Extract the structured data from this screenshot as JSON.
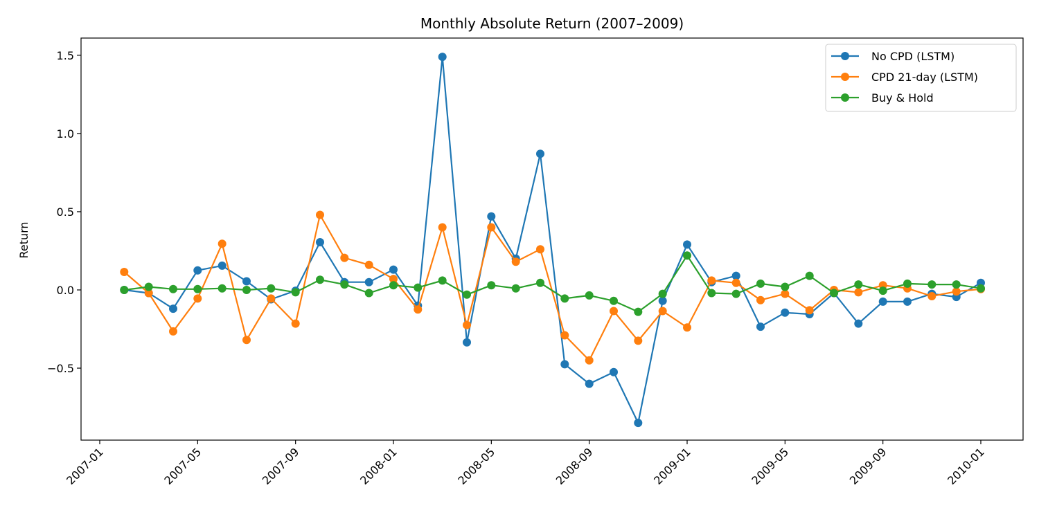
{
  "chart_data": {
    "type": "line",
    "title": "Monthly Absolute Return (2007–2009)",
    "xlabel": "",
    "ylabel": "Return",
    "x": [
      "2007-02",
      "2007-03",
      "2007-04",
      "2007-05",
      "2007-06",
      "2007-07",
      "2007-08",
      "2007-09",
      "2007-10",
      "2007-11",
      "2007-12",
      "2008-01",
      "2008-02",
      "2008-03",
      "2008-04",
      "2008-05",
      "2008-06",
      "2008-07",
      "2008-08",
      "2008-09",
      "2008-10",
      "2008-11",
      "2008-12",
      "2009-01",
      "2009-02",
      "2009-03",
      "2009-04",
      "2009-05",
      "2009-06",
      "2009-07",
      "2009-08",
      "2009-09",
      "2009-10",
      "2009-11",
      "2009-12",
      "2010-01"
    ],
    "x_ticks": [
      "2007-01",
      "2007-05",
      "2007-09",
      "2008-01",
      "2008-05",
      "2008-09",
      "2009-01",
      "2009-05",
      "2009-09",
      "2010-01"
    ],
    "y_ticks": [
      -0.5,
      0.0,
      0.5,
      1.0,
      1.5
    ],
    "y_tick_labels": [
      "−0.5",
      "0.0",
      "0.5",
      "1.0",
      "1.5"
    ],
    "ylim": [
      -0.96,
      1.61
    ],
    "grid": false,
    "legend_position": "top-right",
    "series": [
      {
        "name": "No CPD (LSTM)",
        "color": "#1f77b4",
        "values": [
          0.0,
          -0.02,
          -0.12,
          0.125,
          0.155,
          0.055,
          -0.06,
          -0.005,
          0.305,
          0.05,
          0.05,
          0.13,
          -0.1,
          1.49,
          -0.335,
          0.47,
          0.2,
          0.87,
          -0.475,
          -0.6,
          -0.525,
          -0.85,
          -0.07,
          0.29,
          0.05,
          0.09,
          -0.235,
          -0.145,
          -0.155,
          -0.02,
          -0.215,
          -0.075,
          -0.075,
          -0.025,
          -0.045,
          0.045
        ]
      },
      {
        "name": "CPD 21-day (LSTM)",
        "color": "#ff7f0e",
        "values": [
          0.115,
          -0.02,
          -0.265,
          -0.055,
          0.295,
          -0.32,
          -0.055,
          -0.215,
          0.48,
          0.205,
          0.16,
          0.07,
          -0.125,
          0.4,
          -0.225,
          0.4,
          0.18,
          0.26,
          -0.29,
          -0.45,
          -0.135,
          -0.325,
          -0.135,
          -0.24,
          0.06,
          0.045,
          -0.065,
          -0.025,
          -0.13,
          0.0,
          -0.015,
          0.03,
          0.01,
          -0.04,
          -0.01,
          0.005
        ]
      },
      {
        "name": "Buy & Hold",
        "color": "#2ca02c",
        "values": [
          0.0,
          0.02,
          0.005,
          0.005,
          0.01,
          0.0,
          0.01,
          -0.015,
          0.065,
          0.035,
          -0.02,
          0.03,
          0.015,
          0.06,
          -0.03,
          0.03,
          0.01,
          0.045,
          -0.055,
          -0.035,
          -0.07,
          -0.14,
          -0.025,
          0.22,
          -0.02,
          -0.025,
          0.04,
          0.02,
          0.09,
          -0.02,
          0.035,
          -0.005,
          0.04,
          0.035,
          0.035,
          0.01
        ]
      }
    ]
  }
}
